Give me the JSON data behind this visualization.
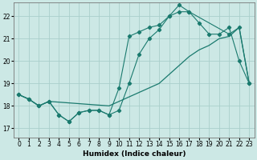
{
  "xlabel": "Humidex (Indice chaleur)",
  "background_color": "#cce8e5",
  "grid_color": "#aacfcb",
  "line_color": "#1a7a6e",
  "xlim": [
    -0.5,
    23.5
  ],
  "ylim": [
    16.6,
    22.6
  ],
  "yticks": [
    17,
    18,
    19,
    20,
    21,
    22
  ],
  "xticks": [
    0,
    1,
    2,
    3,
    4,
    5,
    6,
    7,
    8,
    9,
    10,
    11,
    12,
    13,
    14,
    15,
    16,
    17,
    18,
    19,
    20,
    21,
    22,
    23
  ],
  "line1_x": [
    0,
    1,
    2,
    3,
    4,
    5,
    6,
    7,
    8,
    9,
    10,
    11,
    12,
    13,
    14,
    15,
    16,
    17,
    21,
    22,
    23
  ],
  "line1_y": [
    18.5,
    18.3,
    18.0,
    18.2,
    17.6,
    17.3,
    17.7,
    17.8,
    17.8,
    17.6,
    18.8,
    21.1,
    21.3,
    21.5,
    21.6,
    22.0,
    22.5,
    22.2,
    21.2,
    21.5,
    19.0
  ],
  "line2_x": [
    0,
    1,
    2,
    3,
    4,
    5,
    6,
    7,
    8,
    9,
    10,
    11,
    12,
    13,
    14,
    15,
    16,
    17,
    18,
    19,
    20,
    21,
    22,
    23
  ],
  "line2_y": [
    18.5,
    18.3,
    18.0,
    18.2,
    17.6,
    17.3,
    17.7,
    17.8,
    17.8,
    17.6,
    17.8,
    19.0,
    20.3,
    21.0,
    21.4,
    22.0,
    22.2,
    22.2,
    21.7,
    21.2,
    21.2,
    21.5,
    20.0,
    19.0
  ],
  "line3_x": [
    0,
    1,
    2,
    3,
    9,
    10,
    14,
    17,
    18,
    19,
    20,
    21,
    22,
    23
  ],
  "line3_y": [
    18.5,
    18.3,
    18.0,
    18.2,
    18.0,
    18.2,
    19.0,
    20.2,
    20.5,
    20.7,
    21.0,
    21.1,
    21.5,
    19.0
  ]
}
